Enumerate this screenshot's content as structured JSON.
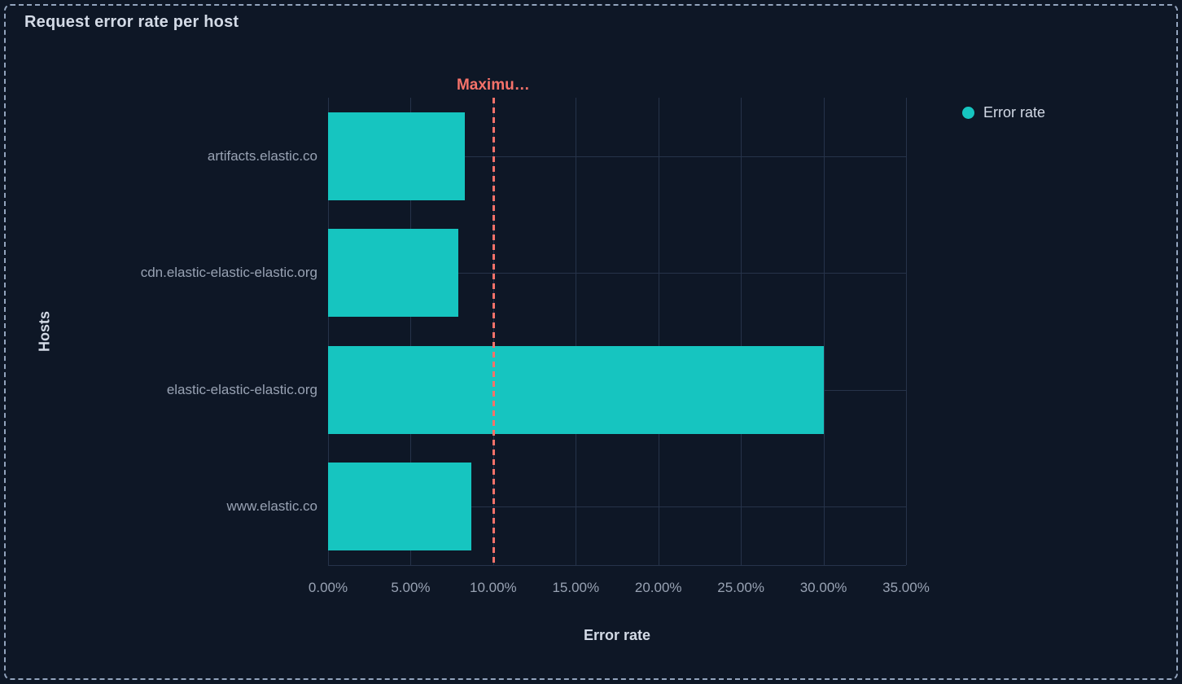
{
  "panel": {
    "title": "Request error rate per host"
  },
  "legend": {
    "position": "right",
    "items": [
      {
        "label": "Error rate",
        "color": "#16C5C0"
      }
    ]
  },
  "chart_data": {
    "type": "bar",
    "orientation": "horizontal",
    "title": "Request error rate per host",
    "categories": [
      "artifacts.elastic.co",
      "cdn.elastic-elastic-elastic.org",
      "elastic-elastic-elastic.org",
      "www.elastic.co"
    ],
    "series": [
      {
        "name": "Error rate",
        "values": [
          8.3,
          7.9,
          30.0,
          8.7
        ],
        "color": "#16C5C0",
        "unit": "%"
      }
    ],
    "xlabel": "Error rate",
    "ylabel": "Hosts",
    "xlim": [
      0,
      35
    ],
    "x_tick_labels": [
      "0.00%",
      "5.00%",
      "10.00%",
      "15.00%",
      "20.00%",
      "25.00%",
      "30.00%",
      "35.00%"
    ],
    "grid": true,
    "legend_position": "top-right",
    "threshold": {
      "value": 10,
      "label": "Maximu…",
      "full_label": "Maximu…",
      "color": "#F6726A",
      "style": "dashed"
    }
  },
  "colors": {
    "background": "#0E1726",
    "panel_border": "#93A4BD",
    "bar": "#16C5C0",
    "gridline": "#26334A",
    "axis_text": "#98A2B3",
    "title_text": "#D3DAE6",
    "threshold": "#F6726A"
  }
}
